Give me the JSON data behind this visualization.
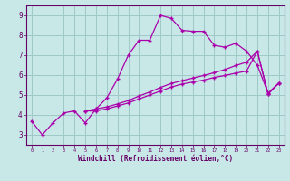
{
  "xlabel": "Windchill (Refroidissement éolien,°C)",
  "background_color": "#c8e8e8",
  "grid_color": "#a0c8c8",
  "line_color": "#aa00aa",
  "xlim": [
    -0.5,
    23.5
  ],
  "ylim": [
    2.5,
    9.5
  ],
  "xticks": [
    0,
    1,
    2,
    3,
    4,
    5,
    6,
    7,
    8,
    9,
    10,
    11,
    12,
    13,
    14,
    15,
    16,
    17,
    18,
    19,
    20,
    21,
    22,
    23
  ],
  "yticks": [
    3,
    4,
    5,
    6,
    7,
    8,
    9
  ],
  "line1_x": [
    0,
    1,
    2,
    3,
    4,
    5,
    6,
    7,
    8,
    9,
    10,
    11,
    12,
    13,
    14,
    15,
    16,
    17,
    18,
    19,
    20,
    21,
    22,
    23
  ],
  "line1_y": [
    3.7,
    3.0,
    3.6,
    4.1,
    4.2,
    3.6,
    4.3,
    4.85,
    5.8,
    7.0,
    7.75,
    7.75,
    9.0,
    8.85,
    8.25,
    8.2,
    8.2,
    7.5,
    7.4,
    7.6,
    7.2,
    6.5,
    5.1,
    5.6
  ],
  "line2_x": [
    5,
    6,
    7,
    8,
    9,
    10,
    11,
    12,
    13,
    14,
    15,
    16,
    17,
    18,
    19,
    20,
    21,
    22,
    23
  ],
  "line2_y": [
    4.2,
    4.2,
    4.3,
    4.45,
    4.6,
    4.8,
    5.0,
    5.2,
    5.4,
    5.55,
    5.65,
    5.75,
    5.88,
    5.98,
    6.1,
    6.2,
    7.2,
    5.05,
    5.6
  ],
  "line3_x": [
    5,
    6,
    7,
    8,
    9,
    10,
    11,
    12,
    13,
    14,
    15,
    16,
    17,
    18,
    19,
    20,
    21,
    22,
    23
  ],
  "line3_y": [
    4.2,
    4.3,
    4.4,
    4.55,
    4.72,
    4.95,
    5.15,
    5.38,
    5.58,
    5.72,
    5.85,
    5.98,
    6.12,
    6.28,
    6.48,
    6.65,
    7.2,
    5.05,
    5.6
  ]
}
